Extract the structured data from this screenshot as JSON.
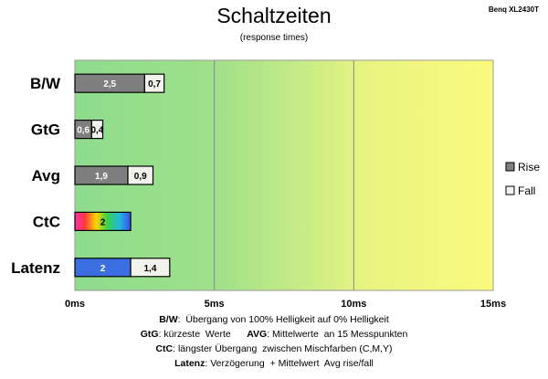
{
  "chart_data": {
    "type": "bar",
    "orientation": "horizontal",
    "stacked": true,
    "title": "Schaltzeiten",
    "subtitle": "(response times)",
    "model": "Benq XL2430T",
    "categories": [
      "B/W",
      "GtG",
      "Avg",
      "CtC",
      "Latenz"
    ],
    "series": [
      {
        "name": "Rise",
        "values": [
          2.5,
          0.6,
          1.9,
          2,
          2
        ],
        "labels": [
          "2,5",
          "0,6",
          "1,9",
          "2",
          "2"
        ]
      },
      {
        "name": "Fall",
        "values": [
          0.7,
          0.4,
          0.9,
          null,
          1.4
        ],
        "labels": [
          "0,7",
          "0,4",
          "0,9",
          "",
          "1,4"
        ]
      }
    ],
    "segment_styles": [
      [
        "gray",
        "gray",
        "gray",
        "rainbow",
        "blue"
      ],
      [
        "light",
        "light",
        "light",
        "none",
        "light"
      ]
    ],
    "xlim": [
      0,
      15
    ],
    "xticks": [
      0,
      5,
      10,
      15
    ],
    "xtick_labels": [
      "0ms",
      "5ms",
      "10ms",
      "15ms"
    ],
    "legend_position": "right",
    "background": "gradient green-to-yellow",
    "colors": {
      "rise": "#7f7f7f",
      "fall": "#f2f2ec",
      "latenz": "#3b6fe0",
      "bg_green": "#8fdc8f",
      "bg_yellow": "#f8f880"
    }
  },
  "notes": [
    {
      "label": "B/W",
      "text": ":  Übergang von 100% Helligkeit auf 0% Helligkeit"
    },
    {
      "label": "GtG",
      "text": ": kürzeste  Werte",
      "label2": "AVG",
      "text2": ": Mittelwerte  an 15 Messpunkten"
    },
    {
      "label": "CtC",
      "text": ": längster Übergang  zwischen Mischfarben (C,M,Y)"
    },
    {
      "label": "Latenz",
      "text": ": Verzögerung  + Mittelwert  Avg rise/fall"
    }
  ]
}
